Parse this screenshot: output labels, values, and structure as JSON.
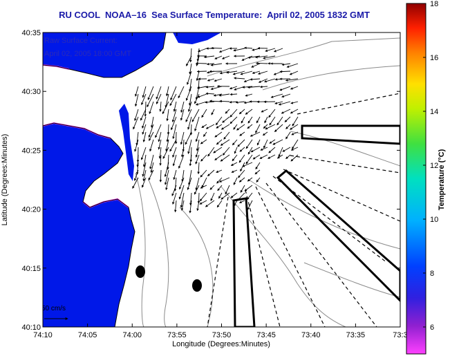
{
  "title": "RU COOL  NOAA–16  Sea Surface Temperature:  April 02, 2005 1832 GMT",
  "overlay": {
    "line1": "Raw Surface Current:",
    "line2": "April 02, 2005 18:00 GMT"
  },
  "scale": {
    "label": "50 cm/s"
  },
  "axes": {
    "xlabel": "Longitude (Degrees:Minutes)",
    "ylabel": "Latitude (Degrees:Minutes)",
    "xticks": [
      "74:10",
      "74:05",
      "74:00",
      "73:55",
      "73:50",
      "73:45",
      "73:40",
      "73:35",
      "73:3"
    ],
    "yticks": [
      "40:35",
      "40:30",
      "40:25",
      "40:20",
      "40:15",
      "40:10"
    ]
  },
  "colorbar": {
    "label": "Temperature (°C)",
    "ticks": [
      "18",
      "16",
      "14",
      "12",
      "10",
      "8",
      "6"
    ],
    "min": 5,
    "max": 18
  },
  "colors": {
    "land": "#0018e8",
    "shoreline_warm": "#ff40ff",
    "ocean": "#ffffff",
    "title": "#1a1aa8",
    "overlay_text": "#2b2bb8"
  }
}
